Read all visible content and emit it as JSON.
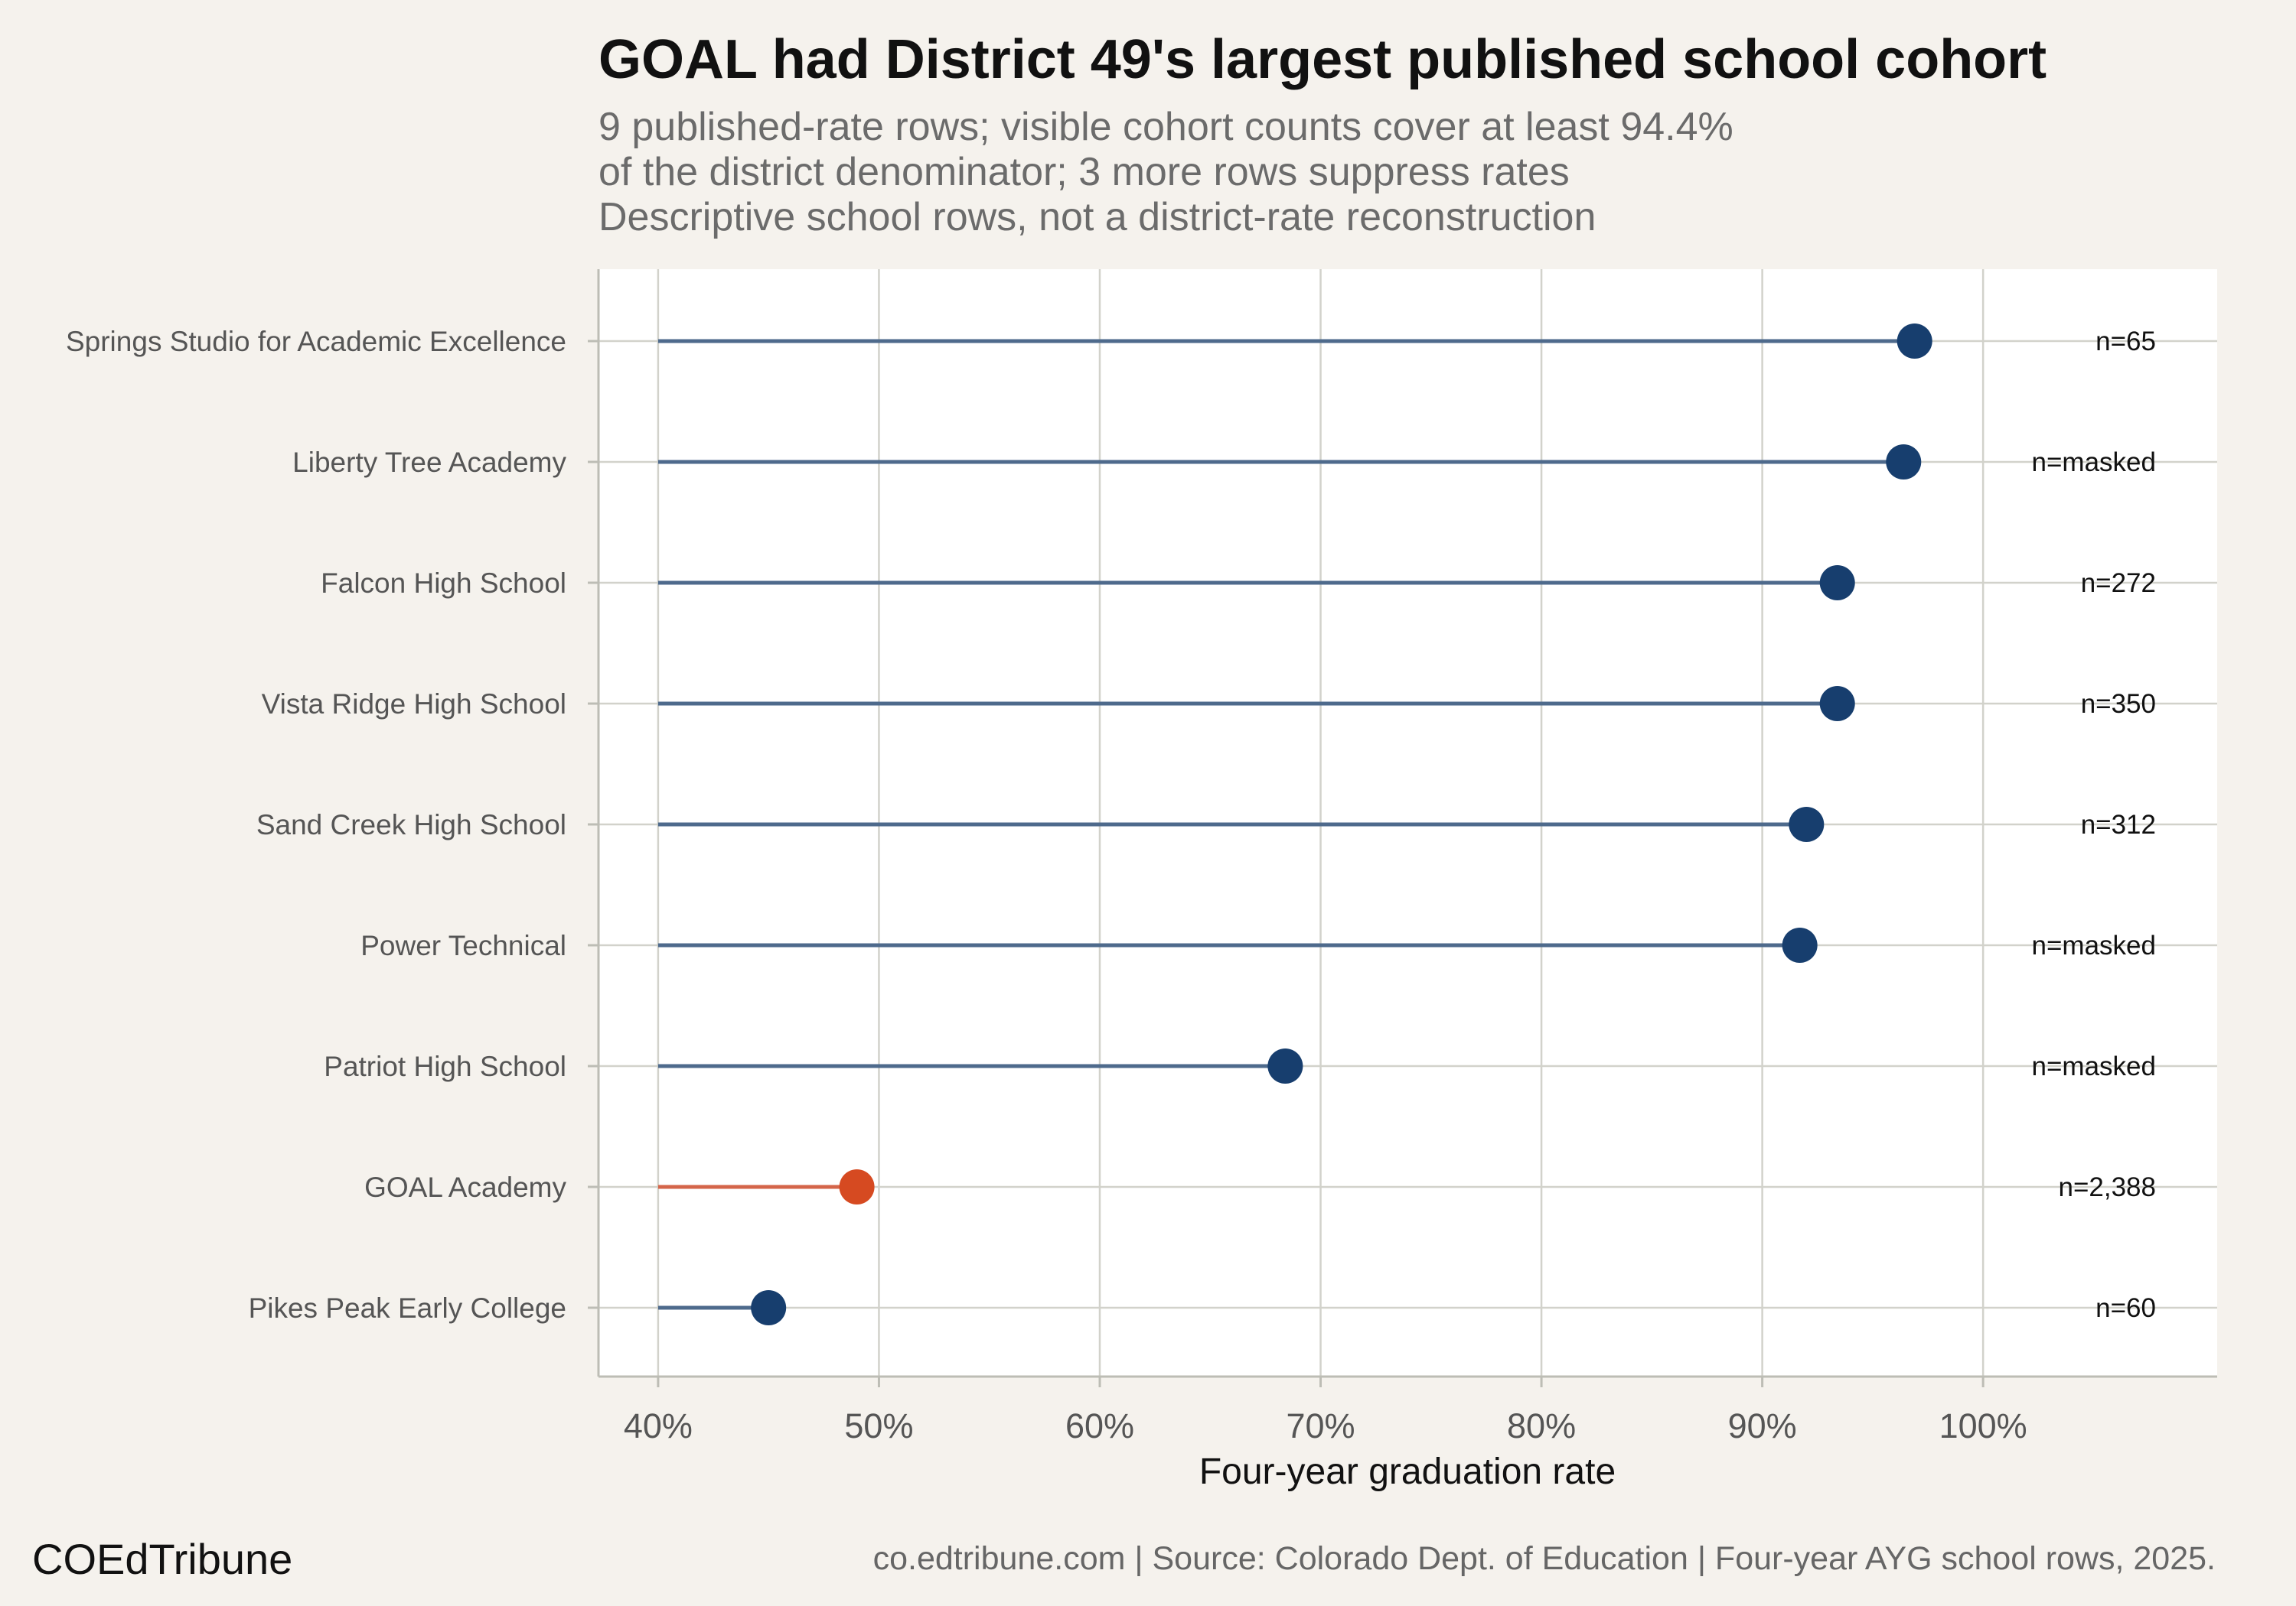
{
  "chart_data": {
    "type": "lollipop",
    "title": "GOAL had District 49's largest published school cohort",
    "subtitle": [
      "9 published-rate rows; visible cohort counts cover at least 94.4%",
      "of the district denominator; 3 more rows suppress rates",
      "Descriptive school rows, not a district-rate reconstruction"
    ],
    "xlabel": "Four-year graduation rate",
    "xlim": [
      37.3,
      110.6
    ],
    "baseline": 40,
    "xticks": [
      40,
      50,
      60,
      70,
      80,
      90,
      100
    ],
    "xtick_labels": [
      "40%",
      "50%",
      "60%",
      "70%",
      "80%",
      "90%",
      "100%"
    ],
    "grid": true,
    "colors": {
      "default": "#173e6e",
      "highlight": "#d64a21",
      "default_stem": "#4e6a8c",
      "highlight_stem": "#d4654a"
    },
    "rows": [
      {
        "school": "Springs Studio for Academic Excellence",
        "rate": 96.9,
        "n_label": "n=65",
        "highlight": false
      },
      {
        "school": "Liberty Tree Academy",
        "rate": 96.4,
        "n_label": "n=masked",
        "highlight": false
      },
      {
        "school": "Falcon High School",
        "rate": 93.4,
        "n_label": "n=272",
        "highlight": false
      },
      {
        "school": "Vista Ridge High School",
        "rate": 93.4,
        "n_label": "n=350",
        "highlight": false
      },
      {
        "school": "Sand Creek High School",
        "rate": 92.0,
        "n_label": "n=312",
        "highlight": false
      },
      {
        "school": "Power Technical",
        "rate": 91.7,
        "n_label": "n=masked",
        "highlight": false
      },
      {
        "school": "Patriot High School",
        "rate": 68.4,
        "n_label": "n=masked",
        "highlight": false
      },
      {
        "school": "GOAL Academy",
        "rate": 49.0,
        "n_label": "n=2,388",
        "highlight": true
      },
      {
        "school": "Pikes Peak Early College",
        "rate": 45.0,
        "n_label": "n=60",
        "highlight": false
      }
    ]
  },
  "footer": {
    "brand": "COEdTribune",
    "caption": "co.edtribune.com | Source: Colorado Dept. of Education | Four-year AYG school rows, 2025."
  }
}
